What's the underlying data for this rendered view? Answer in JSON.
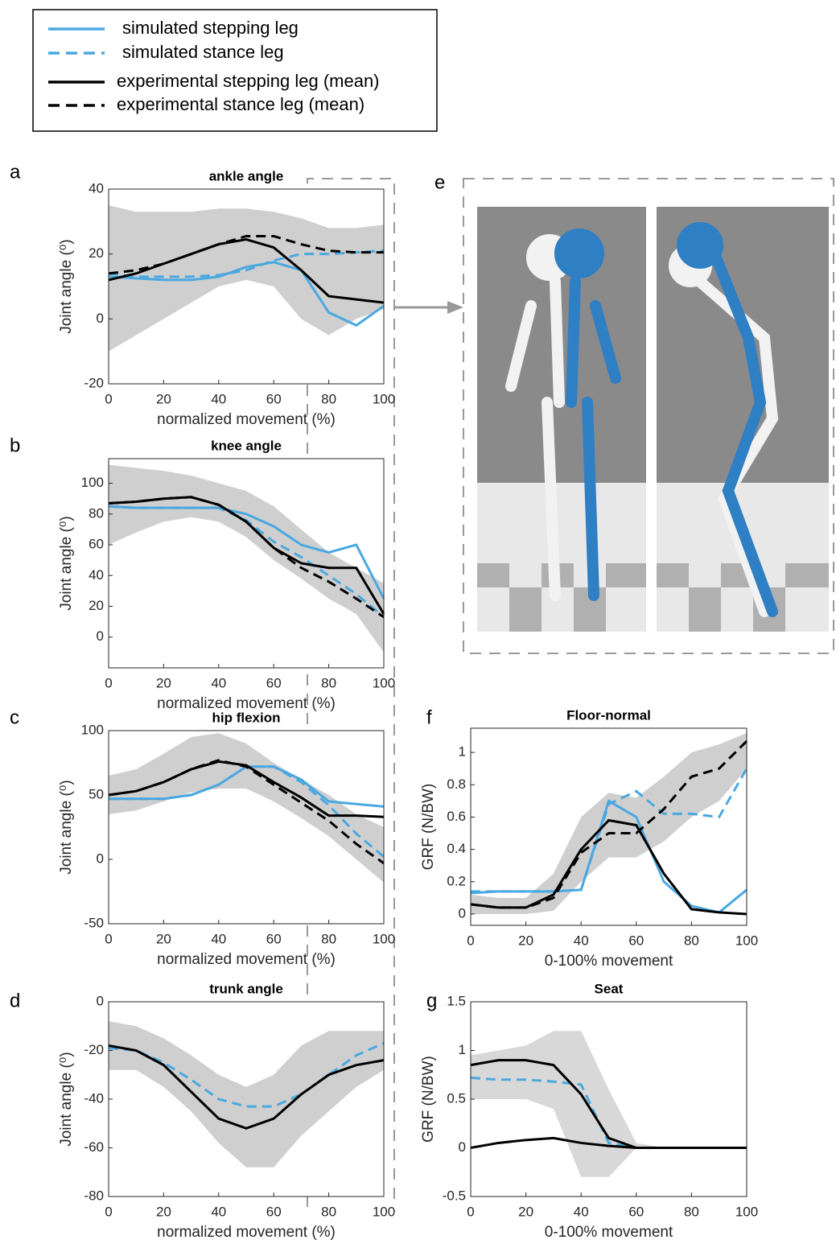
{
  "legend": {
    "items": [
      {
        "name": "simulated stepping leg",
        "color": "#4aa8e0",
        "dash": false
      },
      {
        "name": "simulated stance leg",
        "color": "#4aa8e0",
        "dash": true
      },
      {
        "name": "experimental stepping leg (mean)",
        "color": "#000000",
        "dash": false
      },
      {
        "name": "experimental stance leg (mean)",
        "color": "#000000",
        "dash": true
      }
    ]
  },
  "image_panel": {
    "label": "e"
  },
  "chart_data": [
    {
      "type": "line",
      "panel": "a",
      "title": "ankle angle",
      "xlabel": "normalized movement (%)",
      "ylabel": "Joint angle (⁰)",
      "x": [
        0,
        10,
        20,
        30,
        40,
        50,
        60,
        70,
        80,
        90,
        100
      ],
      "xlim": [
        0,
        100
      ],
      "xticks": [
        0,
        20,
        40,
        60,
        80,
        100
      ],
      "ylim": [
        -20,
        40
      ],
      "yticks": [
        -20,
        0,
        20,
        40
      ],
      "band": {
        "color": "#cfcfcf",
        "upper": [
          35,
          33,
          33,
          33,
          34,
          34,
          33,
          31,
          28,
          28,
          29
        ],
        "lower": [
          -10,
          -5,
          0,
          5,
          10,
          12,
          10,
          0,
          -5,
          0,
          3
        ]
      },
      "series": [
        {
          "color": "#4aa8e0",
          "dash": false,
          "values": [
            13,
            12.5,
            12,
            12,
            13,
            16,
            17.5,
            15,
            2,
            -2,
            4
          ]
        },
        {
          "color": "#4aa8e0",
          "dash": true,
          "values": [
            14,
            13,
            13,
            13,
            13.5,
            15,
            18,
            20,
            20,
            20.5,
            21
          ]
        },
        {
          "color": "#000000",
          "dash": false,
          "values": [
            12,
            14,
            17,
            20,
            23,
            24.5,
            22,
            15,
            7,
            6,
            5
          ]
        },
        {
          "color": "#000000",
          "dash": true,
          "values": [
            14,
            15,
            17,
            20,
            23,
            25.5,
            25.5,
            23,
            21,
            20.5,
            20.5
          ]
        }
      ]
    },
    {
      "type": "line",
      "panel": "b",
      "title": "knee angle",
      "xlabel": "normalized movement (%)",
      "ylabel": "Joint angle (⁰)",
      "x": [
        0,
        10,
        20,
        30,
        40,
        50,
        60,
        70,
        80,
        90,
        100
      ],
      "xlim": [
        0,
        100
      ],
      "xticks": [
        0,
        20,
        40,
        60,
        80,
        100
      ],
      "ylim": [
        -20,
        116
      ],
      "yticks": [
        0,
        20,
        40,
        60,
        80,
        100
      ],
      "band": {
        "color": "#cfcfcf",
        "upper": [
          112,
          110,
          108,
          105,
          100,
          95,
          85,
          70,
          55,
          45,
          35
        ],
        "lower": [
          60,
          68,
          75,
          78,
          75,
          65,
          50,
          38,
          25,
          15,
          -10
        ]
      },
      "series": [
        {
          "color": "#4aa8e0",
          "dash": false,
          "values": [
            85,
            84,
            84,
            84,
            84,
            80,
            72,
            60,
            55,
            60,
            25
          ]
        },
        {
          "color": "#4aa8e0",
          "dash": true,
          "values": [
            85,
            84,
            84,
            84,
            84,
            76,
            62,
            52,
            40,
            28,
            13
          ]
        },
        {
          "color": "#000000",
          "dash": false,
          "values": [
            87,
            88,
            90,
            91,
            86,
            75,
            58,
            48,
            45,
            45,
            15
          ]
        },
        {
          "color": "#000000",
          "dash": true,
          "values": [
            87,
            88,
            90,
            91,
            86,
            75,
            58,
            45,
            36,
            25,
            13
          ]
        }
      ]
    },
    {
      "type": "line",
      "panel": "c",
      "title": "hip flexion",
      "xlabel": "normalized movement (%)",
      "ylabel": "Joint angle (⁰)",
      "x": [
        0,
        10,
        20,
        30,
        40,
        50,
        60,
        70,
        80,
        90,
        100
      ],
      "xlim": [
        0,
        100
      ],
      "xticks": [
        0,
        20,
        40,
        60,
        80,
        100
      ],
      "ylim": [
        -50,
        100
      ],
      "yticks": [
        -50,
        0,
        50,
        100
      ],
      "band": {
        "color": "#cfcfcf",
        "upper": [
          65,
          70,
          82,
          95,
          98,
          90,
          75,
          62,
          50,
          35,
          25
        ],
        "lower": [
          35,
          38,
          45,
          52,
          55,
          55,
          45,
          32,
          18,
          0,
          -18
        ]
      },
      "series": [
        {
          "color": "#4aa8e0",
          "dash": false,
          "values": [
            47,
            47,
            47,
            50,
            58,
            72,
            72,
            62,
            45,
            43,
            41
          ]
        },
        {
          "color": "#4aa8e0",
          "dash": true,
          "values": [
            47,
            47,
            47,
            50,
            58,
            72,
            72,
            60,
            42,
            20,
            2
          ]
        },
        {
          "color": "#000000",
          "dash": false,
          "values": [
            50,
            53,
            60,
            70,
            76,
            73,
            60,
            48,
            34,
            34,
            33
          ]
        },
        {
          "color": "#000000",
          "dash": true,
          "values": [
            50,
            53,
            60,
            70,
            77,
            72,
            58,
            44,
            30,
            12,
            -3
          ]
        }
      ]
    },
    {
      "type": "line",
      "panel": "d",
      "title": "trunk angle",
      "xlabel": "normalized movement (%)",
      "ylabel": "Joint angle (⁰)",
      "x": [
        0,
        10,
        20,
        30,
        40,
        50,
        60,
        70,
        80,
        90,
        100
      ],
      "xlim": [
        0,
        100
      ],
      "xticks": [
        0,
        20,
        40,
        60,
        80,
        100
      ],
      "ylim": [
        -80,
        0
      ],
      "yticks": [
        -80,
        -60,
        -40,
        -20,
        0
      ],
      "band": {
        "color": "#cfcfcf",
        "upper": [
          -8,
          -10,
          -15,
          -22,
          -30,
          -35,
          -30,
          -18,
          -12,
          -12,
          -12
        ],
        "lower": [
          -28,
          -28,
          -35,
          -45,
          -58,
          -68,
          -68,
          -55,
          -45,
          -35,
          -28
        ]
      },
      "series": [
        {
          "color": "#4aa8e0",
          "dash": true,
          "values": [
            -19,
            -20,
            -25,
            -32,
            -40,
            -43,
            -43,
            -38,
            -30,
            -22,
            -17
          ]
        },
        {
          "color": "#000000",
          "dash": false,
          "values": [
            -18,
            -20,
            -26,
            -37,
            -48,
            -52,
            -48,
            -38,
            -30,
            -26,
            -24
          ]
        }
      ]
    },
    {
      "type": "line",
      "panel": "f",
      "title": "Floor-normal",
      "xlabel": "0-100% movement",
      "ylabel": "GRF (N/BW)",
      "x": [
        0,
        10,
        20,
        30,
        40,
        50,
        60,
        70,
        80,
        90,
        100
      ],
      "xlim": [
        0,
        100
      ],
      "xticks": [
        0,
        20,
        40,
        60,
        80,
        100
      ],
      "ylim": [
        -0.07,
        1.15
      ],
      "yticks": [
        0,
        0.2,
        0.4,
        0.6,
        0.8,
        1
      ],
      "band": {
        "color": "#cfcfcf",
        "upper": [
          0.12,
          0.1,
          0.1,
          0.25,
          0.6,
          0.75,
          0.72,
          0.85,
          1,
          1.05,
          1.12
        ],
        "lower": [
          0,
          0,
          0,
          0.02,
          0.2,
          0.35,
          0.35,
          0.45,
          0.6,
          0.7,
          0.9
        ]
      },
      "series": [
        {
          "color": "#4aa8e0",
          "dash": false,
          "values": [
            0.13,
            0.14,
            0.14,
            0.14,
            0.15,
            0.7,
            0.6,
            0.2,
            0.05,
            0.01,
            0.15
          ]
        },
        {
          "color": "#4aa8e0",
          "dash": true,
          "values": [
            0.14,
            0.14,
            0.14,
            0.14,
            0.15,
            0.68,
            0.76,
            0.62,
            0.62,
            0.6,
            0.9
          ]
        },
        {
          "color": "#000000",
          "dash": false,
          "values": [
            0.06,
            0.04,
            0.04,
            0.12,
            0.4,
            0.58,
            0.55,
            0.25,
            0.03,
            0.01,
            0
          ]
        },
        {
          "color": "#000000",
          "dash": true,
          "values": [
            0.06,
            0.04,
            0.04,
            0.1,
            0.38,
            0.5,
            0.5,
            0.65,
            0.85,
            0.9,
            1.07
          ]
        }
      ]
    },
    {
      "type": "line",
      "panel": "g",
      "title": "Seat",
      "xlabel": "0-100% movement",
      "ylabel": "GRF (N/BW)",
      "x": [
        0,
        10,
        20,
        30,
        40,
        50,
        60,
        70,
        80,
        90,
        100
      ],
      "xlim": [
        0,
        100
      ],
      "xticks": [
        0,
        20,
        40,
        60,
        80,
        100
      ],
      "ylim": [
        -0.5,
        1.5
      ],
      "yticks": [
        -0.5,
        0,
        0.5,
        1,
        1.5
      ],
      "band": {
        "color": "#d8d8d8",
        "upper": [
          0.95,
          1,
          1.05,
          1.2,
          1.2,
          0.6,
          0.05,
          0,
          0,
          0,
          0
        ],
        "lower": [
          0.5,
          0.5,
          0.5,
          0.4,
          -0.3,
          -0.3,
          0,
          0,
          0,
          0,
          0
        ]
      },
      "series": [
        {
          "color": "#4aa8e0",
          "dash": true,
          "values": [
            0.72,
            0.7,
            0.7,
            0.68,
            0.65,
            0.05,
            0,
            0,
            0,
            0,
            0
          ]
        },
        {
          "color": "#000000",
          "dash": false,
          "values": [
            0.85,
            0.9,
            0.9,
            0.85,
            0.55,
            0.1,
            0,
            0,
            0,
            0,
            0
          ]
        },
        {
          "color": "#000000",
          "dash": false,
          "values": [
            0,
            0.05,
            0.08,
            0.1,
            0.05,
            0.02,
            0,
            0,
            0,
            0,
            0
          ]
        }
      ]
    }
  ]
}
